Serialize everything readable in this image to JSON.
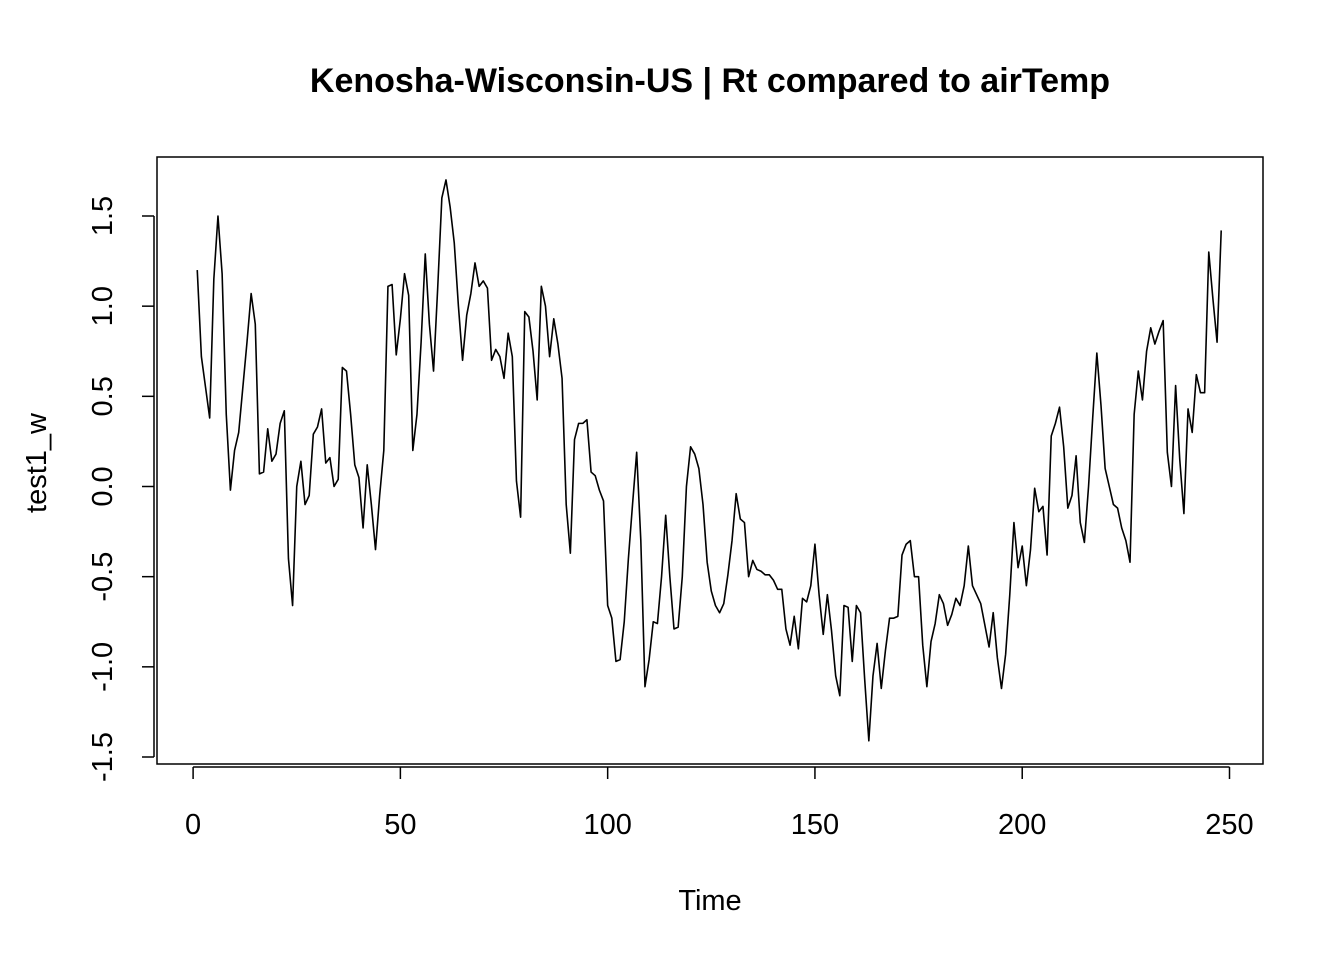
{
  "chart_data": {
    "type": "line",
    "title": "Kenosha-Wisconsin-US | Rt compared to airTemp",
    "xlabel": "Time",
    "ylabel": "test1_w",
    "xlim": [
      1,
      248
    ],
    "ylim": [
      -1.5,
      1.7
    ],
    "x_ticks": [
      0,
      50,
      100,
      150,
      200,
      250
    ],
    "x_tick_labels": [
      "0",
      "50",
      "100",
      "150",
      "200",
      "250"
    ],
    "y_ticks": [
      -1.5,
      -1.0,
      -0.5,
      0.0,
      0.5,
      1.0,
      1.5
    ],
    "y_tick_labels": [
      "-1.5",
      "-1.0",
      "-0.5",
      "0.0",
      "0.5",
      "1.0",
      "1.5"
    ],
    "grid": false,
    "series": [
      {
        "color": "#000000",
        "values": [
          1.2,
          0.72,
          0.55,
          0.38,
          1.15,
          1.5,
          1.18,
          0.4,
          -0.02,
          0.2,
          0.3,
          0.55,
          0.8,
          1.07,
          0.9,
          0.07,
          0.08,
          0.32,
          0.14,
          0.18,
          0.35,
          0.42,
          -0.4,
          -0.66,
          0.0,
          0.14,
          -0.1,
          -0.05,
          0.29,
          0.33,
          0.43,
          0.13,
          0.16,
          0.0,
          0.04,
          0.66,
          0.64,
          0.4,
          0.12,
          0.05,
          -0.23,
          0.12,
          -0.1,
          -0.35,
          -0.05,
          0.2,
          1.11,
          1.12,
          0.73,
          0.93,
          1.18,
          1.06,
          0.2,
          0.4,
          0.8,
          1.29,
          0.9,
          0.64,
          1.1,
          1.6,
          1.7,
          1.55,
          1.35,
          1.0,
          0.7,
          0.95,
          1.07,
          1.24,
          1.11,
          1.14,
          1.1,
          0.7,
          0.76,
          0.72,
          0.6,
          0.85,
          0.72,
          0.03,
          -0.17,
          0.97,
          0.94,
          0.75,
          0.48,
          1.11,
          1.0,
          0.72,
          0.93,
          0.79,
          0.6,
          -0.1,
          -0.37,
          0.26,
          0.35,
          0.35,
          0.37,
          0.08,
          0.06,
          -0.02,
          -0.08,
          -0.66,
          -0.73,
          -0.97,
          -0.96,
          -0.75,
          -0.4,
          -0.1,
          0.19,
          -0.3,
          -1.11,
          -0.96,
          -0.75,
          -0.76,
          -0.5,
          -0.16,
          -0.5,
          -0.79,
          -0.78,
          -0.5,
          0.0,
          0.22,
          0.18,
          0.1,
          -0.1,
          -0.42,
          -0.58,
          -0.66,
          -0.7,
          -0.65,
          -0.49,
          -0.3,
          -0.04,
          -0.18,
          -0.2,
          -0.5,
          -0.41,
          -0.46,
          -0.47,
          -0.49,
          -0.49,
          -0.52,
          -0.57,
          -0.57,
          -0.79,
          -0.88,
          -0.72,
          -0.9,
          -0.62,
          -0.64,
          -0.55,
          -0.32,
          -0.6,
          -0.82,
          -0.6,
          -0.8,
          -1.05,
          -1.16,
          -0.66,
          -0.67,
          -0.97,
          -0.66,
          -0.7,
          -1.07,
          -1.41,
          -1.05,
          -0.87,
          -1.12,
          -0.91,
          -0.73,
          -0.73,
          -0.72,
          -0.38,
          -0.32,
          -0.3,
          -0.5,
          -0.5,
          -0.88,
          -1.11,
          -0.86,
          -0.76,
          -0.6,
          -0.65,
          -0.77,
          -0.71,
          -0.62,
          -0.66,
          -0.55,
          -0.33,
          -0.55,
          -0.6,
          -0.65,
          -0.77,
          -0.89,
          -0.7,
          -0.95,
          -1.12,
          -0.93,
          -0.6,
          -0.2,
          -0.45,
          -0.33,
          -0.55,
          -0.35,
          -0.01,
          -0.14,
          -0.11,
          -0.38,
          0.28,
          0.35,
          0.44,
          0.22,
          -0.12,
          -0.05,
          0.17,
          -0.2,
          -0.31,
          0.0,
          0.38,
          0.74,
          0.45,
          0.1,
          0.0,
          -0.1,
          -0.12,
          -0.23,
          -0.3,
          -0.42,
          0.4,
          0.64,
          0.48,
          0.75,
          0.88,
          0.79,
          0.86,
          0.92,
          0.19,
          0.0,
          0.56,
          0.15,
          -0.15,
          0.43,
          0.3,
          0.62,
          0.52,
          0.52,
          1.3,
          1.04,
          0.8,
          1.42
        ]
      }
    ]
  }
}
